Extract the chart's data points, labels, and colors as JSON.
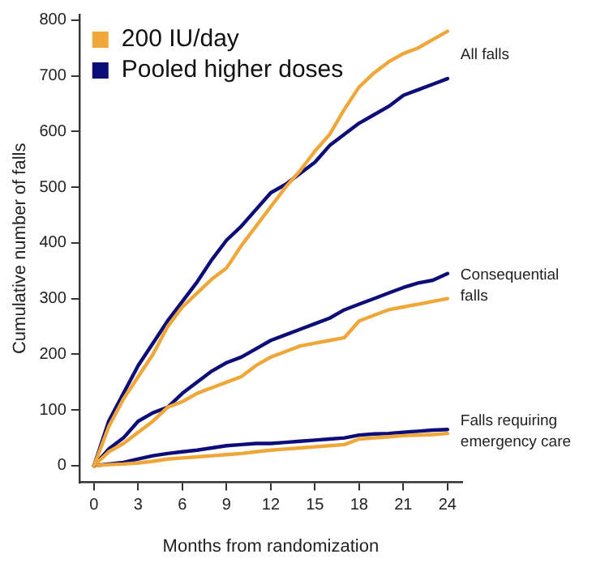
{
  "chart_data": {
    "type": "line",
    "xlabel": "Months from randomization",
    "ylabel": "Cumulative number of falls",
    "x": [
      0,
      1,
      2,
      3,
      4,
      5,
      6,
      7,
      8,
      9,
      10,
      11,
      12,
      13,
      14,
      15,
      16,
      17,
      18,
      19,
      20,
      21,
      22,
      23,
      24
    ],
    "series": [
      {
        "name": "200 IU/day",
        "color": "#f0a73a",
        "values": [
          0,
          70,
          120,
          160,
          200,
          250,
          285,
          310,
          335,
          355,
          395,
          430,
          465,
          500,
          530,
          565,
          595,
          640,
          680,
          705,
          725,
          740,
          750,
          765,
          780
        ]
      },
      {
        "name": "Pooled higher doses",
        "color": "#0d0d7a",
        "values": [
          0,
          80,
          130,
          180,
          220,
          260,
          295,
          330,
          370,
          405,
          430,
          460,
          490,
          505,
          525,
          545,
          575,
          595,
          615,
          630,
          645,
          665,
          675,
          685,
          695
        ]
      },
      {
        "color": "#f0a73a",
        "values": [
          0,
          25,
          40,
          60,
          80,
          105,
          115,
          130,
          140,
          150,
          160,
          180,
          195,
          205,
          215,
          220,
          225,
          230,
          260,
          270,
          280,
          285,
          290,
          295,
          300
        ]
      },
      {
        "color": "#0d0d7a",
        "values": [
          0,
          30,
          50,
          80,
          95,
          105,
          130,
          150,
          170,
          185,
          195,
          210,
          225,
          235,
          245,
          255,
          265,
          280,
          290,
          300,
          310,
          320,
          328,
          333,
          345
        ]
      },
      {
        "color": "#f0a73a",
        "values": [
          0,
          2,
          3,
          5,
          8,
          12,
          14,
          16,
          18,
          20,
          22,
          25,
          28,
          30,
          32,
          34,
          36,
          38,
          48,
          50,
          52,
          54,
          55,
          56,
          58
        ]
      },
      {
        "color": "#0d0d7a",
        "values": [
          0,
          3,
          6,
          12,
          18,
          22,
          25,
          28,
          32,
          36,
          38,
          40,
          40,
          42,
          44,
          46,
          48,
          50,
          55,
          57,
          58,
          60,
          62,
          64,
          65
        ]
      }
    ],
    "annotations": [
      "All falls",
      "Consequential falls",
      "Falls requiring emergency care"
    ],
    "xlim": [
      -1,
      25
    ],
    "xticks": [
      0,
      3,
      6,
      9,
      12,
      15,
      18,
      21,
      24
    ],
    "ylim": [
      -30,
      810
    ],
    "yticks": [
      0,
      100,
      200,
      300,
      400,
      500,
      600,
      700,
      800
    ],
    "grid": false,
    "legend": "top left",
    "marker": "none",
    "line_style": "solid"
  }
}
